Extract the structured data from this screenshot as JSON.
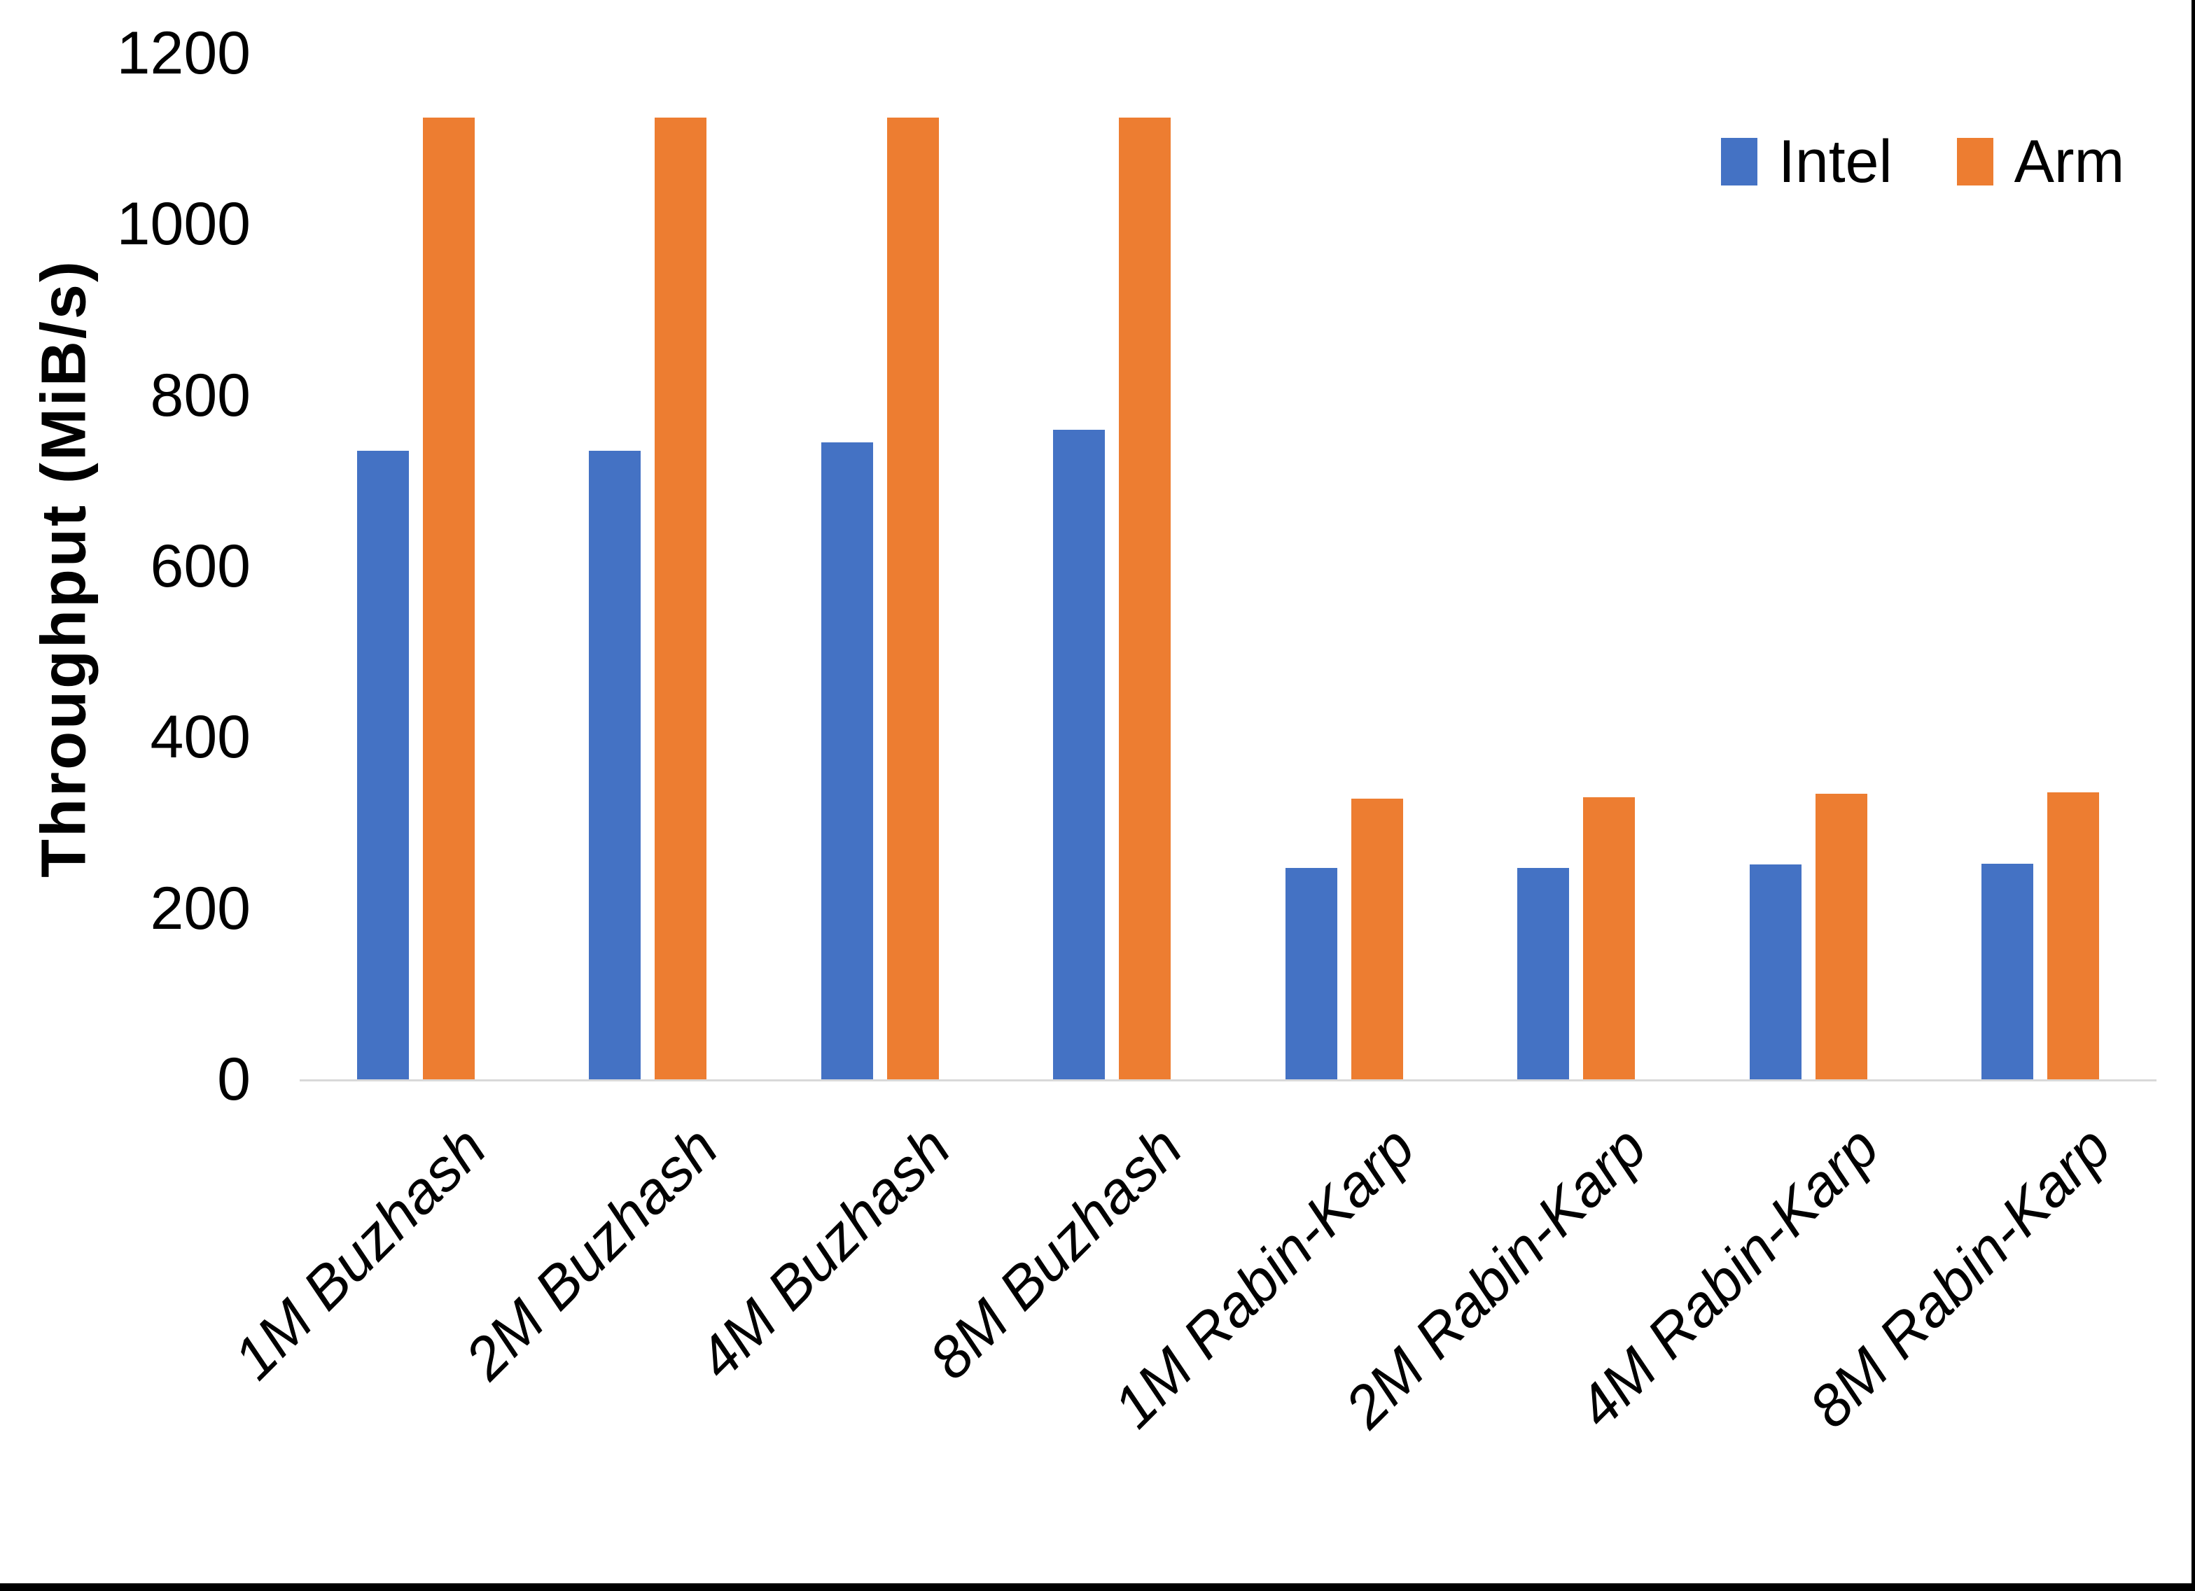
{
  "chart_data": {
    "type": "bar",
    "title": "",
    "xlabel": "",
    "ylabel": "Throughput (MiB/s)",
    "ylim": [
      0,
      1200
    ],
    "yticks": [
      0,
      200,
      400,
      600,
      800,
      1000,
      1200
    ],
    "grid": false,
    "legend_position": "top-right",
    "categories": [
      "1M Buzhash",
      "2M Buzhash",
      "4M Buzhash",
      "8M Buzhash",
      "1M Rabin-Karp",
      "2M Rabin-Karp",
      "4M Rabin-Karp",
      "8M Rabin-Karp"
    ],
    "series": [
      {
        "name": "Intel",
        "color": "#4472C4",
        "values": [
          735,
          735,
          745,
          760,
          247,
          247,
          251,
          252
        ]
      },
      {
        "name": "Arm",
        "color": "#ED7D31",
        "values": [
          1125,
          1125,
          1125,
          1125,
          328,
          330,
          334,
          336
        ]
      }
    ],
    "colors": {
      "axis_line": "#d9d9d9",
      "text": "#000000",
      "background": "#ffffff",
      "border": "#000000"
    }
  }
}
